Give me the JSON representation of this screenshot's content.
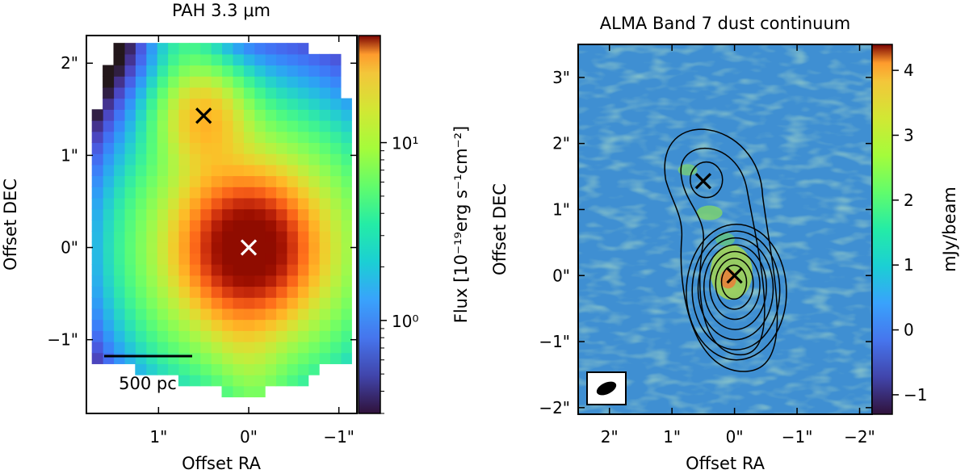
{
  "chart_data": [
    {
      "type": "heatmap",
      "title": "PAH 3.3 μm",
      "xlabel": "Offset RA",
      "ylabel": "Offset DEC",
      "xlim": [
        1.8,
        -1.2
      ],
      "ylim": [
        -1.8,
        2.3
      ],
      "x_axis_inverted": true,
      "x_ticks": [
        {
          "value": 1,
          "label": "1\""
        },
        {
          "value": 0,
          "label": "0\""
        },
        {
          "value": -1,
          "label": "−1\""
        }
      ],
      "y_ticks": [
        {
          "value": 2,
          "label": "2\""
        },
        {
          "value": 1,
          "label": "1\""
        },
        {
          "value": 0,
          "label": "0\""
        },
        {
          "value": -1,
          "label": "−1\""
        }
      ],
      "colorbar": {
        "label": "Flux [10⁻¹⁹erg s⁻¹cm⁻²]",
        "scale": "log",
        "range": [
          0.3,
          40
        ],
        "ticks": [
          {
            "value": 1,
            "label": "10⁰"
          },
          {
            "value": 10,
            "label": "10¹"
          }
        ],
        "colormap": "turbo"
      },
      "markers": [
        {
          "x": 0.5,
          "y": 1.43,
          "symbol": "x",
          "color": "#000000"
        },
        {
          "x": 0.0,
          "y": 0.0,
          "symbol": "x",
          "color": "#ffffff"
        }
      ],
      "scale_bar": {
        "label": "500 pc",
        "length_arcsec": 0.9
      },
      "grid": false
    },
    {
      "type": "heatmap",
      "title": "ALMA Band 7 dust continuum",
      "xlabel": "Offset RA",
      "ylabel": "Offset DEC",
      "xlim": [
        2.5,
        -2.2
      ],
      "ylim": [
        -2.1,
        3.5
      ],
      "x_axis_inverted": true,
      "x_ticks": [
        {
          "value": 2,
          "label": "2\""
        },
        {
          "value": 1,
          "label": "1\""
        },
        {
          "value": 0,
          "label": "0\""
        },
        {
          "value": -1,
          "label": "−1\""
        },
        {
          "value": -2,
          "label": "−2\""
        }
      ],
      "y_ticks": [
        {
          "value": 3,
          "label": "3\""
        },
        {
          "value": 2,
          "label": "2\""
        },
        {
          "value": 1,
          "label": "1\""
        },
        {
          "value": 0,
          "label": "0\""
        },
        {
          "value": -1,
          "label": "−1\""
        },
        {
          "value": -2,
          "label": "−2\""
        }
      ],
      "colorbar": {
        "label": "mJy/beam",
        "scale": "linear",
        "range": [
          -1.3,
          4.4
        ],
        "ticks": [
          {
            "value": -1,
            "label": "−1"
          },
          {
            "value": 0,
            "label": "0"
          },
          {
            "value": 1,
            "label": "1"
          },
          {
            "value": 2,
            "label": "2"
          },
          {
            "value": 3,
            "label": "3"
          },
          {
            "value": 4,
            "label": "4"
          }
        ],
        "colormap": "turbo"
      },
      "markers": [
        {
          "x": 0.5,
          "y": 1.43,
          "symbol": "x",
          "color": "#000000"
        },
        {
          "x": 0.0,
          "y": 0.0,
          "symbol": "x",
          "color": "#000000"
        }
      ],
      "contours": {
        "overlay": "PAH 3.3 μm",
        "color": "#000000",
        "levels": 9
      },
      "beam": {
        "major_arcsec": 0.4,
        "minor_arcsec": 0.22,
        "position_angle_deg": 70
      },
      "grid": false
    }
  ]
}
